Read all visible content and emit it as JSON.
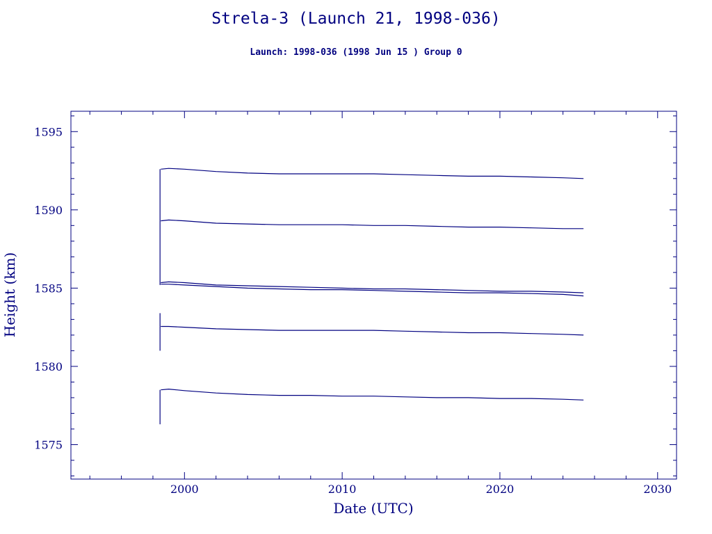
{
  "chart_data": {
    "type": "line",
    "title": "Strela-3 (Launch 21, 1998-036)",
    "subtitle": "Launch: 1998-036  (1998 Jun 15 )  Group 0",
    "xlabel": "Date (UTC)",
    "ylabel": "Height (km)",
    "xlim": [
      1992.8,
      2031.2
    ],
    "ylim": [
      1572.8,
      1596.3
    ],
    "x_ticks": [
      2000,
      2010,
      2020,
      2030
    ],
    "y_ticks": [
      1575,
      1580,
      1585,
      1590,
      1595
    ],
    "grid": false,
    "color": "#000080",
    "launch_segments": [
      {
        "x": 1998.45,
        "y_from": 1585.2,
        "y_to": 1592.6
      },
      {
        "x": 1998.45,
        "y_from": 1581.0,
        "y_to": 1583.4
      },
      {
        "x": 1998.45,
        "y_from": 1576.3,
        "y_to": 1578.5
      }
    ],
    "series": [
      {
        "x": [
          1998.5,
          1999.0,
          2000.0,
          2002.0,
          2004.0,
          2006.0,
          2008.0,
          2010.0,
          2012.0,
          2014.0,
          2016.0,
          2018.0,
          2020.0,
          2022.0,
          2024.0,
          2025.3
        ],
        "values": [
          1592.6,
          1592.65,
          1592.6,
          1592.45,
          1592.35,
          1592.3,
          1592.3,
          1592.3,
          1592.3,
          1592.25,
          1592.2,
          1592.15,
          1592.15,
          1592.1,
          1592.05,
          1592.0
        ]
      },
      {
        "x": [
          1998.5,
          1999.0,
          2000.0,
          2002.0,
          2004.0,
          2006.0,
          2008.0,
          2010.0,
          2012.0,
          2014.0,
          2016.0,
          2018.0,
          2020.0,
          2022.0,
          2024.0,
          2025.3
        ],
        "values": [
          1589.3,
          1589.35,
          1589.3,
          1589.15,
          1589.1,
          1589.05,
          1589.05,
          1589.05,
          1589.0,
          1589.0,
          1588.95,
          1588.9,
          1588.9,
          1588.85,
          1588.8,
          1588.8
        ]
      },
      {
        "x": [
          1998.5,
          1999.0,
          2000.0,
          2002.0,
          2004.0,
          2006.0,
          2008.0,
          2010.0,
          2012.0,
          2014.0,
          2016.0,
          2018.0,
          2020.0,
          2022.0,
          2024.0,
          2025.3
        ],
        "values": [
          1585.35,
          1585.4,
          1585.35,
          1585.2,
          1585.15,
          1585.1,
          1585.05,
          1585.0,
          1584.95,
          1584.95,
          1584.9,
          1584.85,
          1584.8,
          1584.8,
          1584.75,
          1584.7
        ]
      },
      {
        "x": [
          1998.5,
          1999.0,
          2000.0,
          2002.0,
          2004.0,
          2006.0,
          2008.0,
          2010.0,
          2012.0,
          2014.0,
          2016.0,
          2018.0,
          2020.0,
          2022.0,
          2024.0,
          2025.3
        ],
        "values": [
          1585.25,
          1585.25,
          1585.2,
          1585.1,
          1585.0,
          1584.95,
          1584.9,
          1584.9,
          1584.85,
          1584.8,
          1584.75,
          1584.7,
          1584.7,
          1584.65,
          1584.6,
          1584.5
        ]
      },
      {
        "x": [
          1998.5,
          1999.0,
          2000.0,
          2002.0,
          2004.0,
          2006.0,
          2008.0,
          2010.0,
          2012.0,
          2014.0,
          2016.0,
          2018.0,
          2020.0,
          2022.0,
          2024.0,
          2025.3
        ],
        "values": [
          1582.55,
          1582.55,
          1582.5,
          1582.4,
          1582.35,
          1582.3,
          1582.3,
          1582.3,
          1582.3,
          1582.25,
          1582.2,
          1582.15,
          1582.15,
          1582.1,
          1582.05,
          1582.0
        ]
      },
      {
        "x": [
          1998.5,
          1999.0,
          2000.0,
          2002.0,
          2004.0,
          2006.0,
          2008.0,
          2010.0,
          2012.0,
          2014.0,
          2016.0,
          2018.0,
          2020.0,
          2022.0,
          2024.0,
          2025.3
        ],
        "values": [
          1578.5,
          1578.55,
          1578.45,
          1578.3,
          1578.2,
          1578.15,
          1578.15,
          1578.1,
          1578.1,
          1578.05,
          1578.0,
          1578.0,
          1577.95,
          1577.95,
          1577.9,
          1577.85
        ]
      }
    ]
  }
}
